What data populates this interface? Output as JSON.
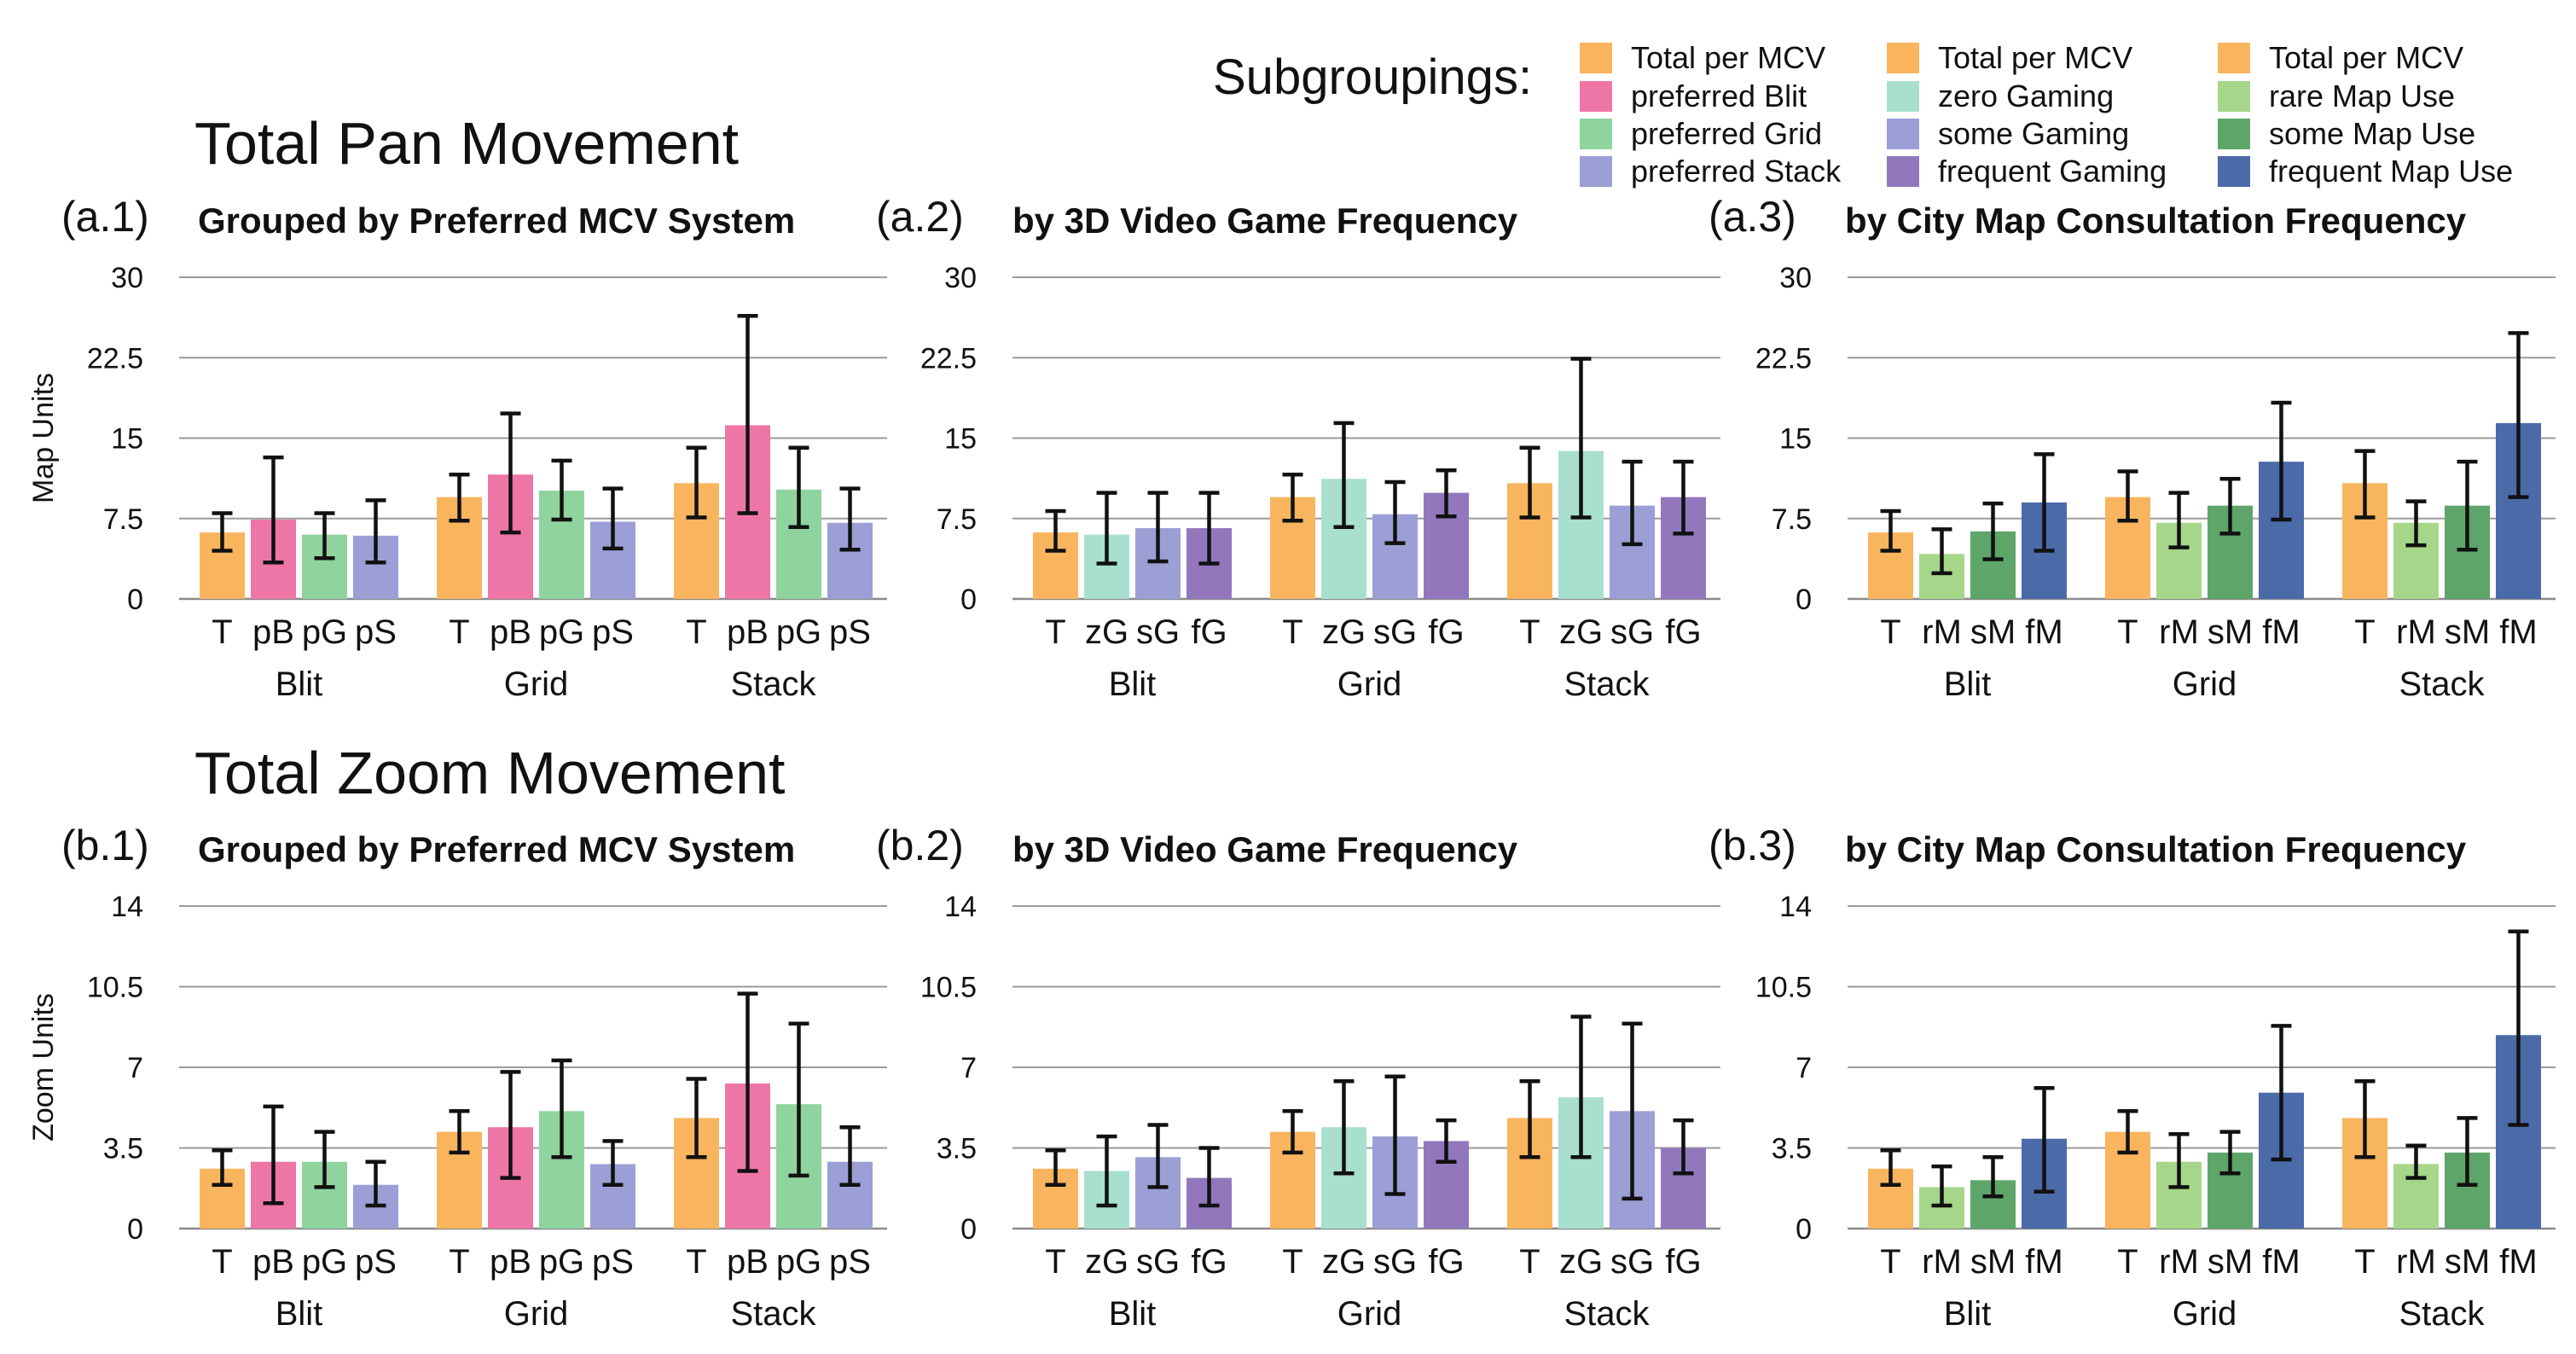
{
  "section_titles": {
    "pan": "Total Pan Movement",
    "zoom": "Total Zoom Movement"
  },
  "legend": {
    "title": "Subgroupings:",
    "columns": [
      [
        {
          "label": "Total per MCV",
          "color": "#f9b55e"
        },
        {
          "label": "preferred Blit",
          "color": "#ee76a7"
        },
        {
          "label": "preferred Grid",
          "color": "#8fd39e"
        },
        {
          "label": "preferred Stack",
          "color": "#9b9fd6"
        }
      ],
      [
        {
          "label": "Total per MCV",
          "color": "#f9b55e"
        },
        {
          "label": "zero Gaming",
          "color": "#a9dfcf"
        },
        {
          "label": "some Gaming",
          "color": "#9b9fd6"
        },
        {
          "label": "frequent Gaming",
          "color": "#9277bd"
        }
      ],
      [
        {
          "label": "Total per MCV",
          "color": "#f9b55e"
        },
        {
          "label": "rare Map Use",
          "color": "#a6d68a"
        },
        {
          "label": "some Map Use",
          "color": "#5ea56a"
        },
        {
          "label": "frequent Map Use",
          "color": "#4b6aa8"
        }
      ]
    ]
  },
  "chart_data": [
    {
      "id": "a1",
      "type": "bar",
      "label": "(a.1)",
      "title": "Grouped by Preferred MCV System",
      "ylabel": "Map Units",
      "ylim": [
        0,
        30
      ],
      "yticks": [
        "0",
        "7.5",
        "15",
        "22.5",
        "30"
      ],
      "groups": [
        "Blit",
        "Grid",
        "Stack"
      ],
      "categories": [
        "T",
        "pB",
        "pG",
        "pS"
      ],
      "colors": [
        "#f9b55e",
        "#ee76a7",
        "#8fd39e",
        "#9b9fd6"
      ],
      "values": [
        [
          6.2,
          7.4,
          6.0,
          5.9
        ],
        [
          9.5,
          11.6,
          10.1,
          7.2
        ],
        [
          10.8,
          16.2,
          10.2,
          7.1
        ]
      ],
      "err_low": [
        [
          4.5,
          3.4,
          3.8,
          3.4
        ],
        [
          7.3,
          6.2,
          7.4,
          4.7
        ],
        [
          7.6,
          8.0,
          6.7,
          4.6
        ]
      ],
      "err_high": [
        [
          8.0,
          13.2,
          8.0,
          9.2
        ],
        [
          11.6,
          17.3,
          12.9,
          10.3
        ],
        [
          14.1,
          26.4,
          14.1,
          10.3
        ]
      ]
    },
    {
      "id": "a2",
      "type": "bar",
      "label": "(a.2)",
      "title": "by 3D Video Game Frequency",
      "ylabel": "",
      "ylim": [
        0,
        30
      ],
      "yticks": [
        "0",
        "7.5",
        "15",
        "22.5",
        "30"
      ],
      "groups": [
        "Blit",
        "Grid",
        "Stack"
      ],
      "categories": [
        "T",
        "zG",
        "sG",
        "fG"
      ],
      "colors": [
        "#f9b55e",
        "#a9dfcf",
        "#9b9fd6",
        "#9277bd"
      ],
      "values": [
        [
          6.2,
          6.0,
          6.6,
          6.6
        ],
        [
          9.5,
          11.2,
          7.9,
          9.9
        ],
        [
          10.8,
          13.8,
          8.7,
          9.5
        ]
      ],
      "err_low": [
        [
          4.5,
          3.3,
          3.5,
          3.3
        ],
        [
          7.3,
          6.7,
          5.2,
          7.7
        ],
        [
          7.6,
          7.6,
          5.1,
          6.1
        ]
      ],
      "err_high": [
        [
          8.2,
          9.9,
          9.9,
          9.9
        ],
        [
          11.6,
          16.4,
          10.9,
          12.0
        ],
        [
          14.1,
          22.4,
          12.8,
          12.8
        ]
      ]
    },
    {
      "id": "a3",
      "type": "bar",
      "label": "(a.3)",
      "title": "by City Map Consultation Frequency",
      "ylabel": "",
      "ylim": [
        0,
        30
      ],
      "yticks": [
        "0",
        "7.5",
        "15",
        "22.5",
        "30"
      ],
      "groups": [
        "Blit",
        "Grid",
        "Stack"
      ],
      "categories": [
        "T",
        "rM",
        "sM",
        "fM"
      ],
      "colors": [
        "#f9b55e",
        "#a6d68a",
        "#5ea56a",
        "#4b6aa8"
      ],
      "values": [
        [
          6.2,
          4.2,
          6.3,
          9.0
        ],
        [
          9.5,
          7.1,
          8.7,
          12.8
        ],
        [
          10.8,
          7.1,
          8.7,
          16.4
        ]
      ],
      "err_low": [
        [
          4.5,
          2.4,
          3.7,
          4.5
        ],
        [
          7.3,
          4.8,
          6.1,
          7.4
        ],
        [
          7.6,
          5.0,
          4.6,
          9.5
        ]
      ],
      "err_high": [
        [
          8.2,
          6.5,
          8.9,
          13.5
        ],
        [
          11.9,
          9.9,
          11.2,
          18.3
        ],
        [
          13.8,
          9.1,
          12.8,
          24.8
        ]
      ]
    },
    {
      "id": "b1",
      "type": "bar",
      "label": "(b.1)",
      "title": "Grouped by Preferred MCV System",
      "ylabel": "Zoom Units",
      "ylim": [
        0,
        14
      ],
      "yticks": [
        "0",
        "3.5",
        "7",
        "10.5",
        "14"
      ],
      "groups": [
        "Blit",
        "Grid",
        "Stack"
      ],
      "categories": [
        "T",
        "pB",
        "pG",
        "pS"
      ],
      "colors": [
        "#f9b55e",
        "#ee76a7",
        "#8fd39e",
        "#9b9fd6"
      ],
      "values": [
        [
          2.6,
          2.9,
          2.9,
          1.9
        ],
        [
          4.2,
          4.4,
          5.1,
          2.8
        ],
        [
          4.8,
          6.3,
          5.4,
          2.9
        ]
      ],
      "err_low": [
        [
          1.9,
          1.1,
          1.8,
          1.0
        ],
        [
          3.3,
          2.2,
          3.1,
          1.9
        ],
        [
          3.1,
          2.5,
          2.3,
          1.9
        ]
      ],
      "err_high": [
        [
          3.4,
          5.3,
          4.2,
          2.9
        ],
        [
          5.1,
          6.8,
          7.3,
          3.8
        ],
        [
          6.5,
          10.2,
          8.9,
          4.4
        ]
      ]
    },
    {
      "id": "b2",
      "type": "bar",
      "label": "(b.2)",
      "title": "by 3D Video Game Frequency",
      "ylabel": "",
      "ylim": [
        0,
        14
      ],
      "yticks": [
        "0",
        "3.5",
        "7",
        "10.5",
        "14"
      ],
      "groups": [
        "Blit",
        "Grid",
        "Stack"
      ],
      "categories": [
        "T",
        "zG",
        "sG",
        "fG"
      ],
      "colors": [
        "#f9b55e",
        "#a9dfcf",
        "#9b9fd6",
        "#9277bd"
      ],
      "values": [
        [
          2.6,
          2.5,
          3.1,
          2.2
        ],
        [
          4.2,
          4.4,
          4.0,
          3.8
        ],
        [
          4.8,
          5.7,
          5.1,
          3.5
        ]
      ],
      "err_low": [
        [
          1.9,
          1.0,
          1.8,
          1.0
        ],
        [
          3.3,
          2.4,
          1.5,
          2.9
        ],
        [
          3.1,
          3.1,
          1.3,
          2.4
        ]
      ],
      "err_high": [
        [
          3.4,
          4.0,
          4.5,
          3.5
        ],
        [
          5.1,
          6.4,
          6.6,
          4.7
        ],
        [
          6.4,
          9.2,
          8.9,
          4.7
        ]
      ]
    },
    {
      "id": "b3",
      "type": "bar",
      "label": "(b.3)",
      "title": "by City Map Consultation Frequency",
      "ylabel": "",
      "ylim": [
        0,
        14
      ],
      "yticks": [
        "0",
        "3.5",
        "7",
        "10.5",
        "14"
      ],
      "groups": [
        "Blit",
        "Grid",
        "Stack"
      ],
      "categories": [
        "T",
        "rM",
        "sM",
        "fM"
      ],
      "colors": [
        "#f9b55e",
        "#a6d68a",
        "#5ea56a",
        "#4b6aa8"
      ],
      "values": [
        [
          2.6,
          1.8,
          2.1,
          3.9
        ],
        [
          4.2,
          2.9,
          3.3,
          5.9
        ],
        [
          4.8,
          2.8,
          3.3,
          8.4
        ]
      ],
      "err_low": [
        [
          1.9,
          1.0,
          1.4,
          1.6
        ],
        [
          3.3,
          1.8,
          2.4,
          3.0
        ],
        [
          3.1,
          2.2,
          1.9,
          4.5
        ]
      ],
      "err_high": [
        [
          3.4,
          2.7,
          3.1,
          6.1
        ],
        [
          5.1,
          4.1,
          4.2,
          8.8
        ],
        [
          6.4,
          3.6,
          4.8,
          12.9
        ]
      ]
    }
  ]
}
